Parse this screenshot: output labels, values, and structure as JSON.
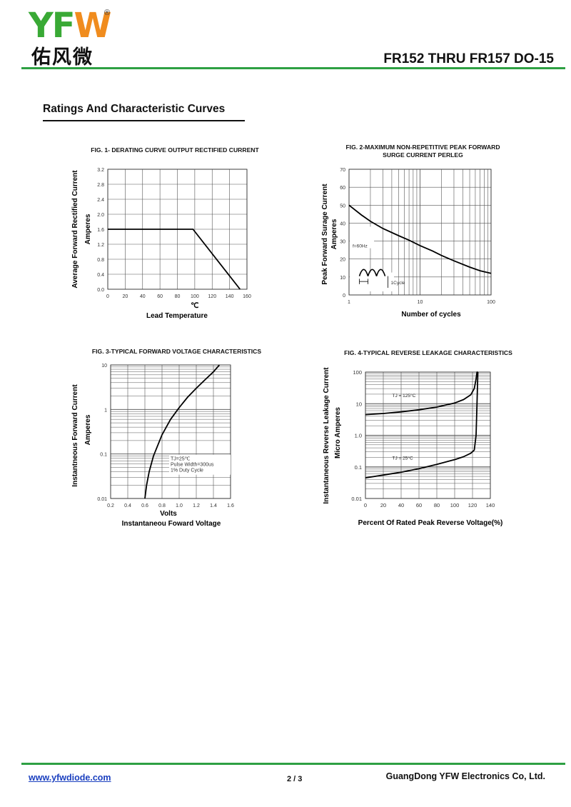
{
  "header": {
    "logo_letters_green": "YF",
    "logo_letter_orange": "W",
    "logo_registered": "®",
    "logo_chinese": "佑风微",
    "doc_title": "FR152 THRU FR157  DO-15",
    "accent_color": "#2ea043"
  },
  "section_title": "Ratings And  Characteristic Curves",
  "footer": {
    "website": "www.yfwdiode.com",
    "page": "2 / 3",
    "company": "GuangDong YFW Electronics Co, Ltd."
  },
  "chart_data": [
    {
      "id": "fig1",
      "type": "line",
      "title": "FIG. 1- DERATING CURVE OUTPUT RECTIFIED CURRENT",
      "ylabel": "Average Forward Rectified Current",
      "ylabel2": "Amperes",
      "xunit": "℃",
      "xlabel": "Lead Temperature",
      "xlim": [
        0,
        160
      ],
      "ylim": [
        0,
        3.2
      ],
      "xticks": [
        0,
        20,
        40,
        60,
        80,
        100,
        120,
        140,
        160
      ],
      "yticks": [
        0.0,
        0.4,
        0.8,
        1.2,
        1.6,
        2.0,
        2.4,
        2.8,
        3.2
      ],
      "xtick_labels": [
        "0",
        "20",
        "40",
        "60",
        "80",
        "100",
        "120",
        "140",
        "160"
      ],
      "ytick_labels": [
        "0.0",
        "0.4",
        "0.8",
        "1.2",
        "1.6",
        "2.0",
        "2.4",
        "2.8",
        "3.2"
      ],
      "grid": true,
      "series": [
        {
          "x": [
            0,
            98,
            152
          ],
          "y": [
            1.6,
            1.6,
            0.0
          ]
        }
      ]
    },
    {
      "id": "fig2",
      "type": "line",
      "title": "FIG. 2-MAXIMUM NON-REPETITIVE PEAK FORWARD",
      "title2": "SURGE CURRENT PERLEG",
      "ylabel": "Peak Forward Surage Current",
      "ylabel2": "Amperes",
      "xlabel": "Number of cycles",
      "xscale": "log",
      "xlim": [
        1,
        100
      ],
      "ylim": [
        0,
        70
      ],
      "xticks": [
        1,
        10,
        100
      ],
      "yticks": [
        0,
        10,
        20,
        30,
        40,
        50,
        60,
        70
      ],
      "xtick_labels": [
        "1",
        "10",
        "100"
      ],
      "ytick_labels": [
        "0",
        "10",
        "20",
        "30",
        "40",
        "50",
        "60",
        "70"
      ],
      "grid": true,
      "annotations": {
        "freq": "f=60Hz",
        "cycle": "1Cycle"
      },
      "series": [
        {
          "x": [
            1,
            1.5,
            2,
            3,
            5,
            7,
            10,
            15,
            20,
            30,
            50,
            70,
            100
          ],
          "y": [
            50,
            44.5,
            41,
            37,
            33,
            30.5,
            27.5,
            24.5,
            22,
            19,
            15.5,
            13.5,
            12
          ]
        }
      ]
    },
    {
      "id": "fig3",
      "type": "line",
      "title": "FIG. 3-TYPICAL FORWARD VOLTAGE CHARACTERISTICS",
      "ylabel": "Instantneous Forward Current",
      "ylabel2": "Amperes",
      "xunit": "Volts",
      "xlabel": "Instantaneou Foward Voltage",
      "yscale": "log",
      "xlim": [
        0.2,
        1.6
      ],
      "ylim": [
        0.01,
        10
      ],
      "xticks": [
        0.2,
        0.4,
        0.6,
        0.8,
        1.0,
        1.2,
        1.4,
        1.6
      ],
      "xtick_labels": [
        "0.2",
        "0.4",
        "0.6",
        "0.8",
        "1.0",
        "1.2",
        "1.4",
        "1.6"
      ],
      "yticks": [
        0.01,
        0.1,
        1,
        10
      ],
      "ytick_labels": [
        "0.01",
        "0.1",
        "1",
        "10"
      ],
      "grid": true,
      "annotations": {
        "line1": "TJ=25℃",
        "line2": "Pulse Width=300us",
        "line3": "1% Duty Cycle"
      },
      "series": [
        {
          "x": [
            0.6,
            0.62,
            0.65,
            0.7,
            0.8,
            0.9,
            1.0,
            1.1,
            1.2,
            1.3,
            1.4,
            1.47
          ],
          "y": [
            0.01,
            0.02,
            0.04,
            0.09,
            0.27,
            0.6,
            1.1,
            1.9,
            3.0,
            4.6,
            7.0,
            10.0
          ]
        }
      ]
    },
    {
      "id": "fig4",
      "type": "line",
      "title": "FIG. 4-TYPICAL REVERSE LEAKAGE CHARACTERISTICS",
      "ylabel": "Instantaneous Reverse Leakage Current",
      "ylabel2": "Micro Amperes",
      "xlabel": "Percent Of Rated Peak Reverse Voltage(%)",
      "yscale": "log",
      "xlim": [
        0,
        140
      ],
      "ylim": [
        0.01,
        100
      ],
      "xticks": [
        0,
        20,
        40,
        60,
        80,
        100,
        120,
        140
      ],
      "xtick_labels": [
        "0",
        "20",
        "40",
        "60",
        "80",
        "100",
        "120",
        "140"
      ],
      "yticks": [
        0.01,
        0.1,
        1,
        10,
        100
      ],
      "ytick_labels": [
        "0.01",
        "0.1",
        "1.0",
        "10",
        "100"
      ],
      "grid": true,
      "series": [
        {
          "name": "TJ = 125°C",
          "x": [
            0,
            20,
            40,
            60,
            80,
            100,
            110,
            118,
            122,
            124,
            125,
            126
          ],
          "y": [
            4.5,
            4.9,
            5.5,
            6.4,
            7.8,
            10.5,
            13.5,
            19,
            30,
            60,
            100,
            100
          ]
        },
        {
          "name": "TJ = 25°C",
          "x": [
            0,
            20,
            40,
            60,
            80,
            100,
            110,
            118,
            122,
            124,
            125,
            126
          ],
          "y": [
            0.045,
            0.055,
            0.068,
            0.088,
            0.12,
            0.17,
            0.21,
            0.27,
            0.34,
            1.0,
            10,
            100
          ]
        }
      ]
    }
  ]
}
